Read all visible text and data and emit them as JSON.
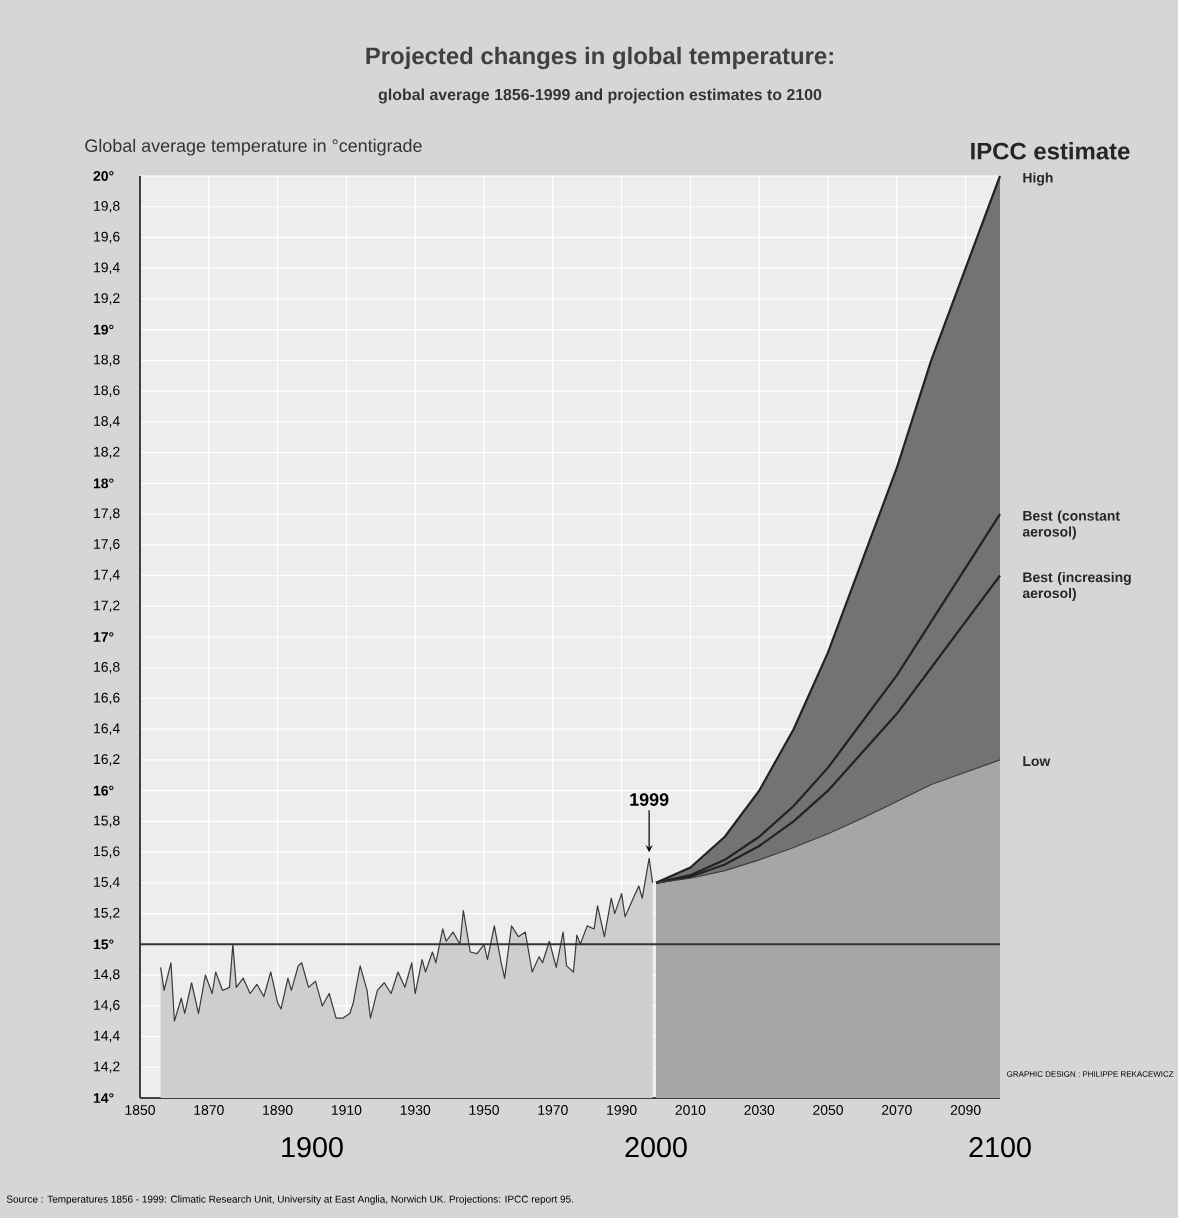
{
  "chart_data": {
    "type": "line",
    "title": "Projected changes in global temperature:",
    "subtitle": "global average 1856-1999 and projection estimates to 2100",
    "ylabel": "Global average temperature in °centigrade",
    "legend_title": "IPCC estimate",
    "series": [
      {
        "type": "area",
        "color": "#3a3a3a",
        "x": [
          1856,
          1857,
          1859,
          1860,
          1862,
          1863,
          1865,
          1867,
          1869,
          1871,
          1872,
          1874,
          1876,
          1877,
          1878,
          1880,
          1882,
          1884,
          1886,
          1888,
          1890,
          1891,
          1893,
          1894,
          1896,
          1897,
          1899,
          1901,
          1903,
          1905,
          1907,
          1909,
          1911,
          1912,
          1914,
          1916,
          1917,
          1919,
          1921,
          1923,
          1925,
          1927,
          1929,
          1930,
          1932,
          1933,
          1935,
          1936,
          1938,
          1939,
          1941,
          1943,
          1944,
          1946,
          1948,
          1950,
          1951,
          1953,
          1955,
          1956,
          1958,
          1960,
          1962,
          1964,
          1966,
          1967,
          1969,
          1971,
          1973,
          1974,
          1976,
          1977,
          1978,
          1980,
          1982,
          1983,
          1985,
          1987,
          1988,
          1990,
          1991,
          1993,
          1995,
          1996,
          1998,
          1999
        ],
        "values": [
          14.85,
          14.7,
          14.88,
          14.5,
          14.65,
          14.55,
          14.75,
          14.55,
          14.8,
          14.68,
          14.82,
          14.7,
          14.72,
          15.0,
          14.72,
          14.78,
          14.68,
          14.74,
          14.66,
          14.82,
          14.62,
          14.58,
          14.78,
          14.7,
          14.86,
          14.88,
          14.72,
          14.76,
          14.6,
          14.68,
          14.52,
          14.52,
          14.55,
          14.62,
          14.86,
          14.7,
          14.52,
          14.7,
          14.75,
          14.68,
          14.82,
          14.72,
          14.88,
          14.68,
          14.9,
          14.82,
          14.95,
          14.88,
          15.1,
          15.02,
          15.08,
          15.0,
          15.22,
          14.95,
          14.94,
          15.0,
          14.9,
          15.12,
          14.88,
          14.78,
          15.12,
          15.05,
          15.08,
          14.82,
          14.92,
          14.88,
          15.02,
          14.85,
          15.08,
          14.86,
          14.82,
          15.06,
          15.0,
          15.12,
          15.1,
          15.25,
          15.05,
          15.3,
          15.2,
          15.33,
          15.18,
          15.28,
          15.38,
          15.3,
          15.56,
          15.4
        ]
      },
      {
        "name": "High",
        "color": "#222222",
        "x": [
          2000,
          2010,
          2020,
          2030,
          2040,
          2050,
          2060,
          2070,
          2080,
          2090,
          2100
        ],
        "values": [
          15.4,
          15.5,
          15.7,
          16.0,
          16.4,
          16.9,
          17.5,
          18.1,
          18.8,
          19.4,
          20.0
        ]
      },
      {
        "name": "Best (constant aerosol)",
        "color": "#222222",
        "x": [
          2000,
          2010,
          2020,
          2030,
          2040,
          2050,
          2060,
          2070,
          2080,
          2090,
          2100
        ],
        "values": [
          15.4,
          15.45,
          15.55,
          15.7,
          15.9,
          16.15,
          16.45,
          16.75,
          17.1,
          17.45,
          17.8
        ]
      },
      {
        "name": "Best (increasing aerosol)",
        "color": "#222222",
        "x": [
          2000,
          2010,
          2020,
          2030,
          2040,
          2050,
          2060,
          2070,
          2080,
          2090,
          2100
        ],
        "values": [
          15.4,
          15.44,
          15.52,
          15.64,
          15.8,
          16.0,
          16.25,
          16.5,
          16.8,
          17.1,
          17.4
        ]
      },
      {
        "type": "area",
        "name": "Low",
        "color": "#3a3a3a",
        "x": [
          2000,
          2010,
          2020,
          2030,
          2040,
          2050,
          2060,
          2070,
          2080,
          2090,
          2100
        ],
        "values": [
          15.4,
          15.43,
          15.48,
          15.55,
          15.63,
          15.72,
          15.82,
          15.93,
          16.04,
          16.12,
          16.2
        ]
      }
    ],
    "xlim": [
      1850,
      2100
    ],
    "xticks": [
      1850,
      1870,
      1890,
      1910,
      1930,
      1950,
      1970,
      1990,
      2010,
      2030,
      2050,
      2070,
      2090
    ],
    "x2lim": [
      1850,
      2100
    ],
    "x2ticks": [
      1900,
      2000,
      2100
    ],
    "ylim": [
      14,
      20
    ],
    "yticks": [
      {
        "value": 14,
        "label": "14°"
      },
      {
        "value": 14.2,
        "label": "14,2"
      },
      {
        "value": 14.4,
        "label": "14,4"
      },
      {
        "value": 14.6,
        "label": "14,6"
      },
      {
        "value": 14.8,
        "label": "14,8"
      },
      {
        "value": 15,
        "label": "15°"
      },
      {
        "value": 15.2,
        "label": "15,2"
      },
      {
        "value": 15.4,
        "label": "15,4"
      },
      {
        "value": 15.6,
        "label": "15,6"
      },
      {
        "value": 15.8,
        "label": "15,8"
      },
      {
        "value": 16,
        "label": "16°"
      },
      {
        "value": 16.2,
        "label": "16,2"
      },
      {
        "value": 16.4,
        "label": "16,4"
      },
      {
        "value": 16.6,
        "label": "16,6"
      },
      {
        "value": 16.8,
        "label": "16,8"
      },
      {
        "value": 17,
        "label": "17°"
      },
      {
        "value": 17.2,
        "label": "17,2"
      },
      {
        "value": 17.4,
        "label": "17,4"
      },
      {
        "value": 17.6,
        "label": "17,6"
      },
      {
        "value": 17.8,
        "label": "17,8"
      },
      {
        "value": 18,
        "label": "18°"
      },
      {
        "value": 18.2,
        "label": "18,2"
      },
      {
        "value": 18.4,
        "label": "18,4"
      },
      {
        "value": 18.6,
        "label": "18,6"
      },
      {
        "value": 18.8,
        "label": "18,8"
      },
      {
        "value": 19,
        "label": "19°"
      },
      {
        "value": 19.2,
        "label": "19,2"
      },
      {
        "value": 19.4,
        "label": "19,4"
      },
      {
        "value": 19.6,
        "label": "19,6"
      },
      {
        "value": 19.8,
        "label": "19,8"
      },
      {
        "value": 20,
        "label": "20°"
      }
    ],
    "grid": true,
    "ref_lines": [
      {
        "axis": "y",
        "value": 15,
        "color": "#333333"
      }
    ],
    "annotations": [
      {
        "text": "1999",
        "x": 1998,
        "y": 15.56
      },
      "Source : Temperatures 1856 - 1999: Climatic Research Unit, University at East Anglia, Norwich UK. Projections: IPCC report 95.",
      "GRAPHIC DESIGN : PHILIPPE REKACEWICZ"
    ]
  }
}
